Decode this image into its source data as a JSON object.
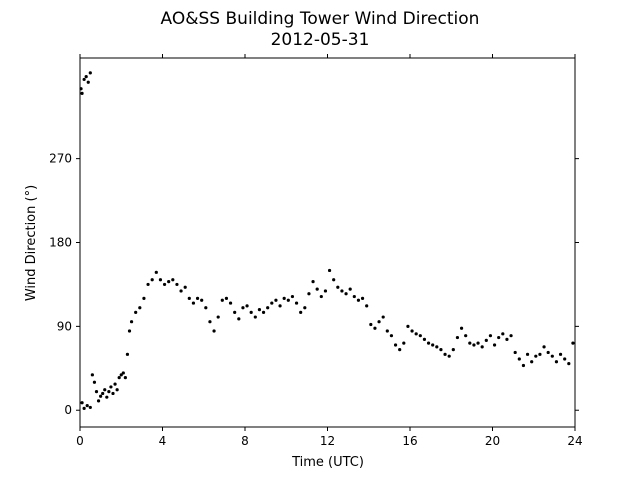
{
  "chart_data": {
    "type": "scatter",
    "title": "AO&SS Building Tower Wind Direction",
    "subtitle": "2012-05-31",
    "x_label": "Time (UTC)",
    "y_label": "Wind Direction (°)",
    "color": "#000000",
    "xlim": [
      0,
      24
    ],
    "xticks": [
      0,
      4,
      8,
      12,
      16,
      20,
      24
    ],
    "ylim": [
      -18,
      378
    ],
    "yticks": [
      0,
      90,
      180,
      270
    ],
    "x": [
      0.05,
      0.1,
      0.2,
      0.3,
      0.4,
      0.5,
      0.1,
      0.2,
      0.35,
      0.5,
      0.6,
      0.7,
      0.8,
      0.9,
      1.0,
      1.1,
      1.2,
      1.3,
      1.4,
      1.5,
      1.6,
      1.7,
      1.8,
      1.9,
      2.0,
      2.1,
      2.2,
      2.3,
      2.4,
      2.5,
      2.7,
      2.9,
      3.1,
      3.3,
      3.5,
      3.7,
      3.9,
      4.1,
      4.3,
      4.5,
      4.7,
      4.9,
      5.1,
      5.3,
      5.5,
      5.7,
      5.9,
      6.1,
      6.3,
      6.5,
      6.7,
      6.9,
      7.1,
      7.3,
      7.5,
      7.7,
      7.9,
      8.1,
      8.3,
      8.5,
      8.7,
      8.9,
      9.1,
      9.3,
      9.5,
      9.7,
      9.9,
      10.1,
      10.3,
      10.5,
      10.7,
      10.9,
      11.1,
      11.3,
      11.5,
      11.7,
      11.9,
      12.1,
      12.3,
      12.5,
      12.7,
      12.9,
      13.1,
      13.3,
      13.5,
      13.7,
      13.9,
      14.1,
      14.3,
      14.5,
      14.7,
      14.9,
      15.1,
      15.3,
      15.5,
      15.7,
      15.9,
      16.1,
      16.3,
      16.5,
      16.7,
      16.9,
      17.1,
      17.3,
      17.5,
      17.7,
      17.9,
      18.1,
      18.3,
      18.5,
      18.7,
      18.9,
      19.1,
      19.3,
      19.5,
      19.7,
      19.9,
      20.1,
      20.3,
      20.5,
      20.7,
      20.9,
      21.1,
      21.3,
      21.5,
      21.7,
      21.9,
      22.1,
      22.3,
      22.5,
      22.7,
      22.9,
      23.1,
      23.3,
      23.5,
      23.7,
      23.9
    ],
    "values": [
      345,
      340,
      355,
      358,
      352,
      362,
      8,
      2,
      5,
      3,
      38,
      30,
      20,
      10,
      15,
      18,
      22,
      14,
      20,
      25,
      18,
      28,
      22,
      35,
      38,
      40,
      35,
      60,
      85,
      95,
      105,
      110,
      120,
      135,
      140,
      148,
      140,
      135,
      138,
      140,
      135,
      128,
      132,
      120,
      115,
      120,
      118,
      110,
      95,
      85,
      100,
      118,
      120,
      115,
      105,
      98,
      110,
      112,
      105,
      100,
      108,
      105,
      110,
      115,
      118,
      112,
      120,
      118,
      122,
      115,
      105,
      110,
      125,
      138,
      130,
      122,
      128,
      150,
      140,
      132,
      128,
      125,
      130,
      122,
      118,
      120,
      112,
      92,
      88,
      95,
      100,
      85,
      80,
      70,
      65,
      72,
      90,
      85,
      82,
      80,
      76,
      72,
      70,
      68,
      65,
      60,
      58,
      65,
      78,
      88,
      80,
      72,
      70,
      72,
      68,
      75,
      80,
      70,
      78,
      82,
      76,
      80,
      62,
      55,
      48,
      60,
      52,
      58,
      60,
      68,
      62,
      58,
      52,
      60,
      55,
      50,
      72
    ]
  }
}
